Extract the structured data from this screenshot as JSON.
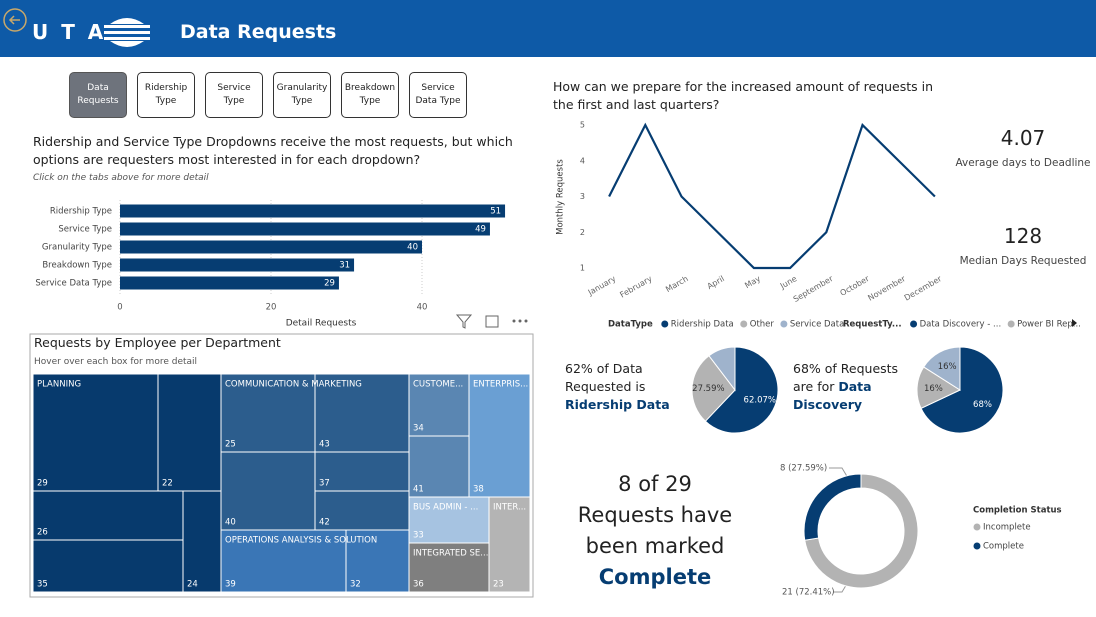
{
  "header": {
    "logo": "U T A",
    "title": "Data Requests"
  },
  "tabs": [
    "Data Requests",
    "Ridership Type",
    "Service Type",
    "Granularity Type",
    "Breakdown Type",
    "Service Data Type"
  ],
  "kpis": [
    {
      "value": "4.07",
      "label": "Average days to Deadline"
    },
    {
      "value": "128",
      "label": "Median Days Requested"
    }
  ],
  "chart_data": [
    {
      "type": "bar",
      "title": "Ridership and Service Type Dropdowns receive the most requests, but which options are requesters most interested in for each dropdown?",
      "subtitle": "Click on the tabs above for more detail",
      "categories": [
        "Ridership Type",
        "Service Type",
        "Granularity Type",
        "Breakdown Type",
        "Service Data Type"
      ],
      "values": [
        51,
        49,
        40,
        31,
        29
      ],
      "color": "#063d72",
      "xlabel": "Detail Requests",
      "xlim": [
        0,
        52
      ],
      "xticks": [
        0,
        20,
        40
      ]
    },
    {
      "type": "line",
      "title": "How can we prepare for the increased amount of requests in the first and last quarters?",
      "ylabel": "Monthly Requests",
      "categories": [
        "January",
        "February",
        "March",
        "April",
        "May",
        "June",
        "September",
        "October",
        "November",
        "December"
      ],
      "values": [
        3,
        5,
        3,
        2,
        1,
        1,
        2,
        5,
        4,
        3
      ],
      "color": "#063d72",
      "ylim": [
        1,
        5
      ],
      "yticks": [
        1,
        2,
        3,
        4,
        5
      ]
    },
    {
      "type": "treemap",
      "title": "Requests by Employee per Department",
      "subtitle": "Hover over each box for more detail",
      "groups": [
        {
          "name": "PLANNING",
          "color": "#073a6d",
          "values": [
            29,
            22,
            26,
            35,
            24
          ]
        },
        {
          "name": "COMMUNICATION & MARKETING",
          "color": "#2c5d8d",
          "values": [
            25,
            43,
            37,
            40,
            42
          ]
        },
        {
          "name": "OPERATIONS ANALYSIS & SOLUTION",
          "color": "#3a76b6",
          "values": [
            39,
            32
          ]
        },
        {
          "name": "CUSTOME...",
          "color": "#5a86b2",
          "values": [
            34,
            41
          ]
        },
        {
          "name": "ENTERPRIS...",
          "color": "#6a9fd3",
          "values": [
            38
          ]
        },
        {
          "name": "BUS ADMIN - ...",
          "color": "#a6c3e1",
          "values": [
            33
          ]
        },
        {
          "name": "INTER...",
          "color": "#b4b4b4",
          "values": [
            23
          ]
        },
        {
          "name": "INTEGRATED SE...",
          "color": "#7f7f7f",
          "values": [
            36
          ]
        }
      ]
    },
    {
      "type": "pie",
      "legend_title": "DataType",
      "annotation": [
        "62% of Data Requested is",
        "Ridership Data"
      ],
      "categories": [
        "Ridership Data",
        "Other",
        "Service Data"
      ],
      "values": [
        62.07,
        27.59,
        10.34
      ],
      "value_labels": [
        "62.07%",
        "27.59%",
        null
      ],
      "colors": [
        "#063d72",
        "#b3b3b3",
        "#9fb3cc"
      ]
    },
    {
      "type": "pie",
      "legend_title": "RequestTy...",
      "annotation": [
        "68% of Requests are for",
        "Data Discovery"
      ],
      "categories": [
        "Data Discovery - ...",
        "Power BI Rep...",
        null
      ],
      "values": [
        68,
        16,
        16
      ],
      "value_labels": [
        "68%",
        "16%",
        "16%"
      ],
      "colors": [
        "#063d72",
        "#b3b3b3",
        "#9fb3cc"
      ]
    },
    {
      "type": "donut",
      "legend_title": "Completion Status",
      "annotation": [
        "8 of 29 Requests have been marked",
        "Complete"
      ],
      "categories": [
        "Incomplete",
        "Complete"
      ],
      "values": [
        21,
        8
      ],
      "value_labels": [
        "21 (72.41%)",
        "8 (27.59%)"
      ],
      "colors": [
        "#b3b3b3",
        "#063d72"
      ]
    }
  ]
}
